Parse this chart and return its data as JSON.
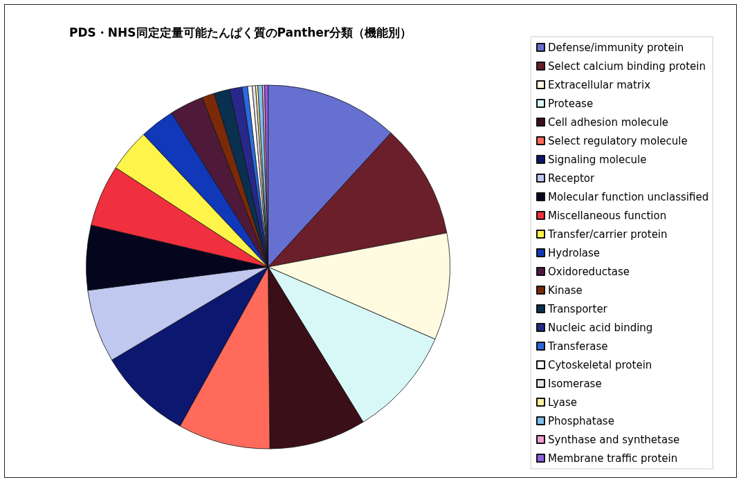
{
  "chart_data": {
    "type": "pie",
    "title": "PDS・NHS同定定量可能たんぱく質のPanther分類（機能別）",
    "categories": [
      "Defense/immunity protein",
      "Select calcium binding protein",
      "Extracellular matrix",
      "Protease",
      "Cell adhesion molecule",
      "Select regulatory molecule",
      "Signaling molecule",
      "Receptor",
      "Molecular function unclassified",
      "Miscellaneous function",
      "Transfer/carrier protein",
      "Hydrolase",
      "Oxidoreductase",
      "Kinase",
      "Transporter",
      "Nucleic acid binding",
      "Transferase",
      "Cytoskeletal protein",
      "Isomerase",
      "Lyase",
      "Phosphatase",
      "Synthase and synthetase",
      "Membrane traffic protein"
    ],
    "values": [
      11.8,
      10.2,
      9.5,
      9.75,
      8.6,
      8.2,
      8.4,
      6.5,
      5.75,
      5.5,
      3.8,
      3.1,
      3.0,
      1.1,
      1.4,
      1.1,
      0.5,
      0.4,
      0.3,
      0.2,
      0.4,
      0.2,
      0.3
    ],
    "colors": [
      "#6670d0",
      "#6b1f2a",
      "#fffbe0",
      "#d8f8f8",
      "#3a0f18",
      "#ff6a5a",
      "#0c1770",
      "#c0c8f0",
      "#05061e",
      "#f0303e",
      "#fff44a",
      "#1038b8",
      "#4f1a3a",
      "#7a2a08",
      "#0a3050",
      "#28288a",
      "#2a6ae0",
      "#ffffff",
      "#e4e4e4",
      "#fff0a0",
      "#80c0f0",
      "#f0a0c8",
      "#9060e0"
    ],
    "legend": "right"
  }
}
